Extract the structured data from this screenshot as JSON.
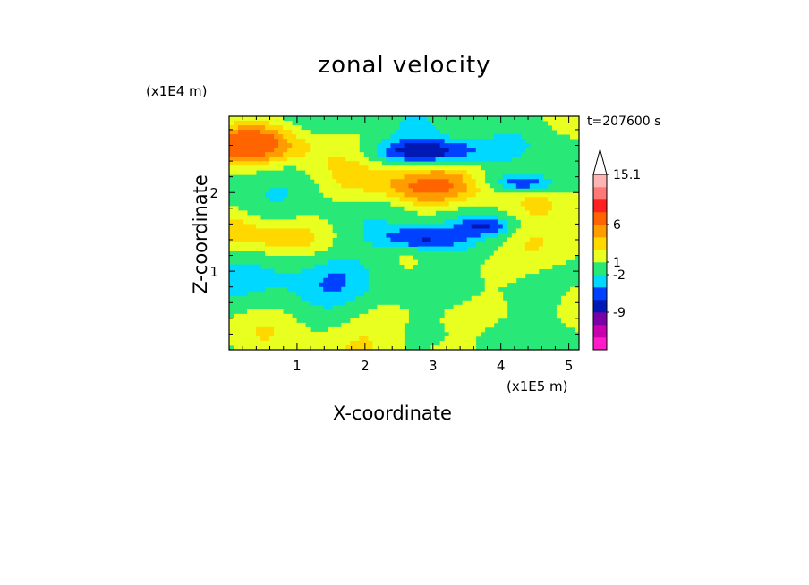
{
  "chart_data": {
    "type": "heatmap",
    "title": "zonal velocity",
    "xlabel": "X-coordinate",
    "ylabel": "Z-coordinate",
    "x_scale_note": "(x1E5 m)",
    "y_scale_note": "(x1E4 m)",
    "time_label": "t=207600 s",
    "xlim": [
      0,
      5.15
    ],
    "ylim": [
      0,
      2.97
    ],
    "x_ticks": [
      1,
      2,
      3,
      4,
      5
    ],
    "y_ticks": [
      1,
      2
    ],
    "colorbar": {
      "levels_shown": [
        "15.1",
        "6",
        "1",
        "-2",
        "-9"
      ],
      "colors": [
        "#ff1cc8",
        "#c800b0",
        "#7a00a8",
        "#0018b4",
        "#0040ff",
        "#00d8ff",
        "#28e878",
        "#e8ff20",
        "#ffd800",
        "#ff9c00",
        "#ff6400",
        "#ff2020",
        "#ff7878",
        "#ffb4b4"
      ]
    }
  }
}
